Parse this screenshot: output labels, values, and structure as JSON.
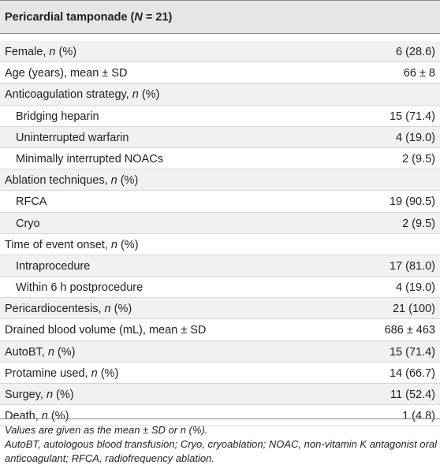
{
  "table": {
    "header_pre": "Pericardial tamponade (",
    "header_n": "N",
    "header_post": " = 21)",
    "rows": [
      {
        "pre": "Female, ",
        "ital": "n",
        "post": " (%)",
        "value": "6 (28.6)",
        "sub": false
      },
      {
        "pre": "Age (years), mean ± SD",
        "ital": "",
        "post": "",
        "value": "66 ± 8",
        "sub": false
      },
      {
        "pre": "Anticoagulation strategy, ",
        "ital": "n",
        "post": " (%)",
        "value": "",
        "sub": false
      },
      {
        "pre": "Bridging heparin",
        "ital": "",
        "post": "",
        "value": "15 (71.4)",
        "sub": true
      },
      {
        "pre": "Uninterrupted warfarin",
        "ital": "",
        "post": "",
        "value": "4 (19.0)",
        "sub": true
      },
      {
        "pre": "Minimally interrupted NOACs",
        "ital": "",
        "post": "",
        "value": "2 (9.5)",
        "sub": true
      },
      {
        "pre": "Ablation techniques, ",
        "ital": "n",
        "post": " (%)",
        "value": "",
        "sub": false
      },
      {
        "pre": "RFCA",
        "ital": "",
        "post": "",
        "value": "19 (90.5)",
        "sub": true
      },
      {
        "pre": "Cryo",
        "ital": "",
        "post": "",
        "value": "2 (9.5)",
        "sub": true
      },
      {
        "pre": "Time of event onset, ",
        "ital": "n",
        "post": " (%)",
        "value": "",
        "sub": false
      },
      {
        "pre": "Intraprocedure",
        "ital": "",
        "post": "",
        "value": "17 (81.0)",
        "sub": true
      },
      {
        "pre": "Within 6 h postprocedure",
        "ital": "",
        "post": "",
        "value": "4 (19.0)",
        "sub": true
      },
      {
        "pre": "Pericardiocentesis, ",
        "ital": "n",
        "post": " (%)",
        "value": "21 (100)",
        "sub": false
      },
      {
        "pre": "Drained blood volume (mL), mean ± SD",
        "ital": "",
        "post": "",
        "value": "686 ± 463",
        "sub": false
      },
      {
        "pre": "AutoBT, ",
        "ital": "n",
        "post": " (%)",
        "value": "15 (71.4)",
        "sub": false
      },
      {
        "pre": "Protamine used, ",
        "ital": "n",
        "post": " (%)",
        "value": "14 (66.7)",
        "sub": false
      },
      {
        "pre": "Surgey, ",
        "ital": "n",
        "post": " (%)",
        "value": "11 (52.4)",
        "sub": false
      },
      {
        "pre": "Death, ",
        "ital": "n",
        "post": " (%)",
        "value": "1 (4.8)",
        "sub": false
      }
    ]
  },
  "footnotes": {
    "line1": "Values are given as the mean ± SD or n (%).",
    "line2": "AutoBT, autologous blood transfusion; Cryo, cryoablation; NOAC, non-vitamin K antagonist oral anticoagulant; RFCA, radiofrequency ablation."
  }
}
